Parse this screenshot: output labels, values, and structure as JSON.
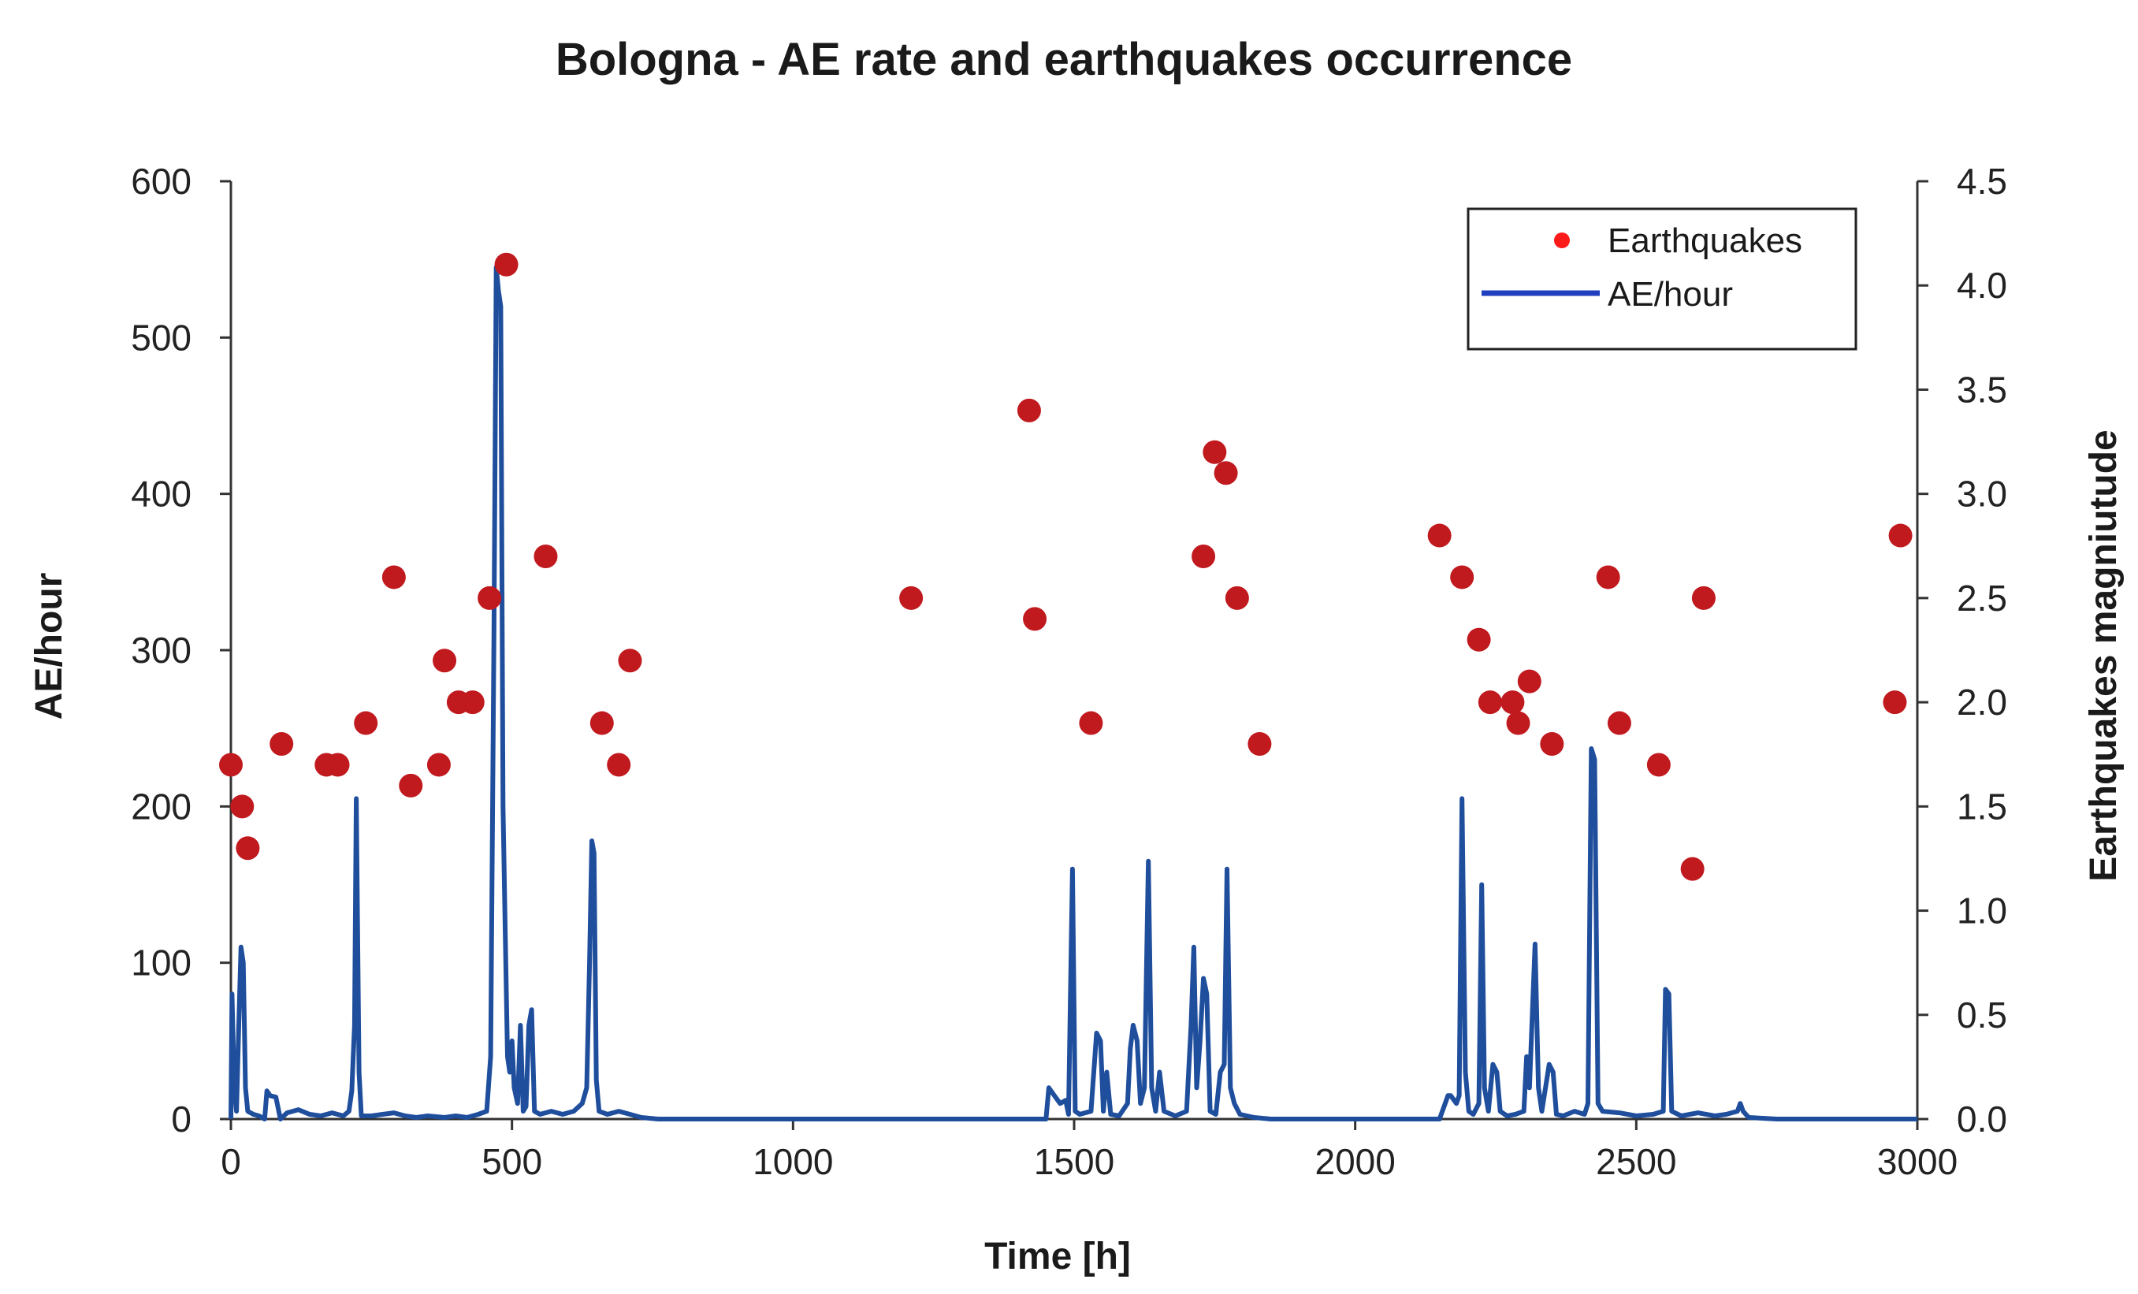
{
  "chart_data": {
    "type": "line+scatter",
    "title": "Bologna - AE rate and earthquakes occurrence",
    "xlabel": "Time [h]",
    "ylabel_left": "AE/hour",
    "ylabel_right": "Earthquakes magniutude",
    "xlim": [
      0,
      3000
    ],
    "ylim_left": [
      0,
      600
    ],
    "ylim_right": [
      0,
      4.5
    ],
    "x_ticks": [
      0,
      500,
      1000,
      1500,
      2000,
      2500,
      3000
    ],
    "y_left_ticks": [
      0,
      100,
      200,
      300,
      400,
      500,
      600
    ],
    "y_right_ticks": [
      "0.0",
      "0.5",
      "1.0",
      "1.5",
      "2.0",
      "2.5",
      "3.0",
      "3.5",
      "4.0",
      "4.5"
    ],
    "legend_position": "top-right",
    "series": [
      {
        "name": "Earthquakes",
        "type": "scatter",
        "axis": "right",
        "color": "#c0191e",
        "legend_color": "#ff1a1a",
        "points": [
          [
            0,
            1.7
          ],
          [
            20,
            1.5
          ],
          [
            30,
            1.3
          ],
          [
            90,
            1.8
          ],
          [
            170,
            1.7
          ],
          [
            190,
            1.7
          ],
          [
            240,
            1.9
          ],
          [
            290,
            2.6
          ],
          [
            320,
            1.6
          ],
          [
            370,
            1.7
          ],
          [
            380,
            2.2
          ],
          [
            405,
            2.0
          ],
          [
            430,
            2.0
          ],
          [
            460,
            2.5
          ],
          [
            490,
            4.1
          ],
          [
            560,
            2.7
          ],
          [
            660,
            1.9
          ],
          [
            690,
            1.7
          ],
          [
            710,
            2.2
          ],
          [
            1210,
            2.5
          ],
          [
            1420,
            3.4
          ],
          [
            1430,
            2.4
          ],
          [
            1530,
            1.9
          ],
          [
            1730,
            2.7
          ],
          [
            1750,
            3.2
          ],
          [
            1770,
            3.1
          ],
          [
            1790,
            2.5
          ],
          [
            1830,
            1.8
          ],
          [
            2150,
            2.8
          ],
          [
            2190,
            2.6
          ],
          [
            2220,
            2.3
          ],
          [
            2240,
            2.0
          ],
          [
            2280,
            2.0
          ],
          [
            2290,
            1.9
          ],
          [
            2310,
            2.1
          ],
          [
            2350,
            1.8
          ],
          [
            2450,
            2.6
          ],
          [
            2470,
            1.9
          ],
          [
            2540,
            1.7
          ],
          [
            2600,
            1.2
          ],
          [
            2620,
            2.5
          ],
          [
            2960,
            2.0
          ],
          [
            2970,
            2.8
          ]
        ]
      },
      {
        "name": "AE/hour",
        "type": "line",
        "axis": "left",
        "color": "#1f4e9c",
        "legend_color": "#1f3fbf",
        "points": [
          [
            0,
            0
          ],
          [
            2,
            80
          ],
          [
            6,
            20
          ],
          [
            10,
            5
          ],
          [
            14,
            60
          ],
          [
            18,
            110
          ],
          [
            22,
            100
          ],
          [
            26,
            20
          ],
          [
            30,
            5
          ],
          [
            40,
            3
          ],
          [
            50,
            2
          ],
          [
            60,
            0
          ],
          [
            64,
            18
          ],
          [
            70,
            15
          ],
          [
            80,
            14
          ],
          [
            88,
            0
          ],
          [
            100,
            4
          ],
          [
            120,
            6
          ],
          [
            140,
            3
          ],
          [
            160,
            2
          ],
          [
            180,
            4
          ],
          [
            200,
            2
          ],
          [
            210,
            5
          ],
          [
            215,
            18
          ],
          [
            220,
            60
          ],
          [
            223,
            205
          ],
          [
            228,
            30
          ],
          [
            232,
            2
          ],
          [
            250,
            2
          ],
          [
            270,
            3
          ],
          [
            290,
            4
          ],
          [
            310,
            2
          ],
          [
            330,
            1
          ],
          [
            350,
            2
          ],
          [
            380,
            1
          ],
          [
            400,
            2
          ],
          [
            420,
            1
          ],
          [
            440,
            3
          ],
          [
            455,
            5
          ],
          [
            462,
            40
          ],
          [
            468,
            310
          ],
          [
            472,
            545
          ],
          [
            476,
            530
          ],
          [
            480,
            520
          ],
          [
            484,
            200
          ],
          [
            488,
            120
          ],
          [
            492,
            40
          ],
          [
            496,
            30
          ],
          [
            500,
            50
          ],
          [
            504,
            20
          ],
          [
            510,
            10
          ],
          [
            515,
            60
          ],
          [
            520,
            5
          ],
          [
            525,
            8
          ],
          [
            530,
            60
          ],
          [
            535,
            70
          ],
          [
            540,
            5
          ],
          [
            550,
            3
          ],
          [
            570,
            5
          ],
          [
            590,
            3
          ],
          [
            610,
            5
          ],
          [
            625,
            10
          ],
          [
            633,
            20
          ],
          [
            638,
            100
          ],
          [
            642,
            178
          ],
          [
            646,
            170
          ],
          [
            650,
            25
          ],
          [
            655,
            5
          ],
          [
            670,
            3
          ],
          [
            690,
            5
          ],
          [
            710,
            3
          ],
          [
            730,
            1
          ],
          [
            760,
            0
          ],
          [
            1000,
            0
          ],
          [
            1200,
            0
          ],
          [
            1400,
            0
          ],
          [
            1450,
            0
          ],
          [
            1455,
            20
          ],
          [
            1465,
            15
          ],
          [
            1475,
            10
          ],
          [
            1485,
            12
          ],
          [
            1490,
            3
          ],
          [
            1497,
            160
          ],
          [
            1502,
            5
          ],
          [
            1510,
            3
          ],
          [
            1530,
            5
          ],
          [
            1540,
            55
          ],
          [
            1547,
            50
          ],
          [
            1552,
            5
          ],
          [
            1558,
            30
          ],
          [
            1565,
            3
          ],
          [
            1580,
            2
          ],
          [
            1595,
            10
          ],
          [
            1600,
            45
          ],
          [
            1605,
            60
          ],
          [
            1612,
            50
          ],
          [
            1618,
            10
          ],
          [
            1625,
            20
          ],
          [
            1632,
            165
          ],
          [
            1638,
            20
          ],
          [
            1645,
            5
          ],
          [
            1652,
            30
          ],
          [
            1660,
            5
          ],
          [
            1680,
            2
          ],
          [
            1700,
            5
          ],
          [
            1708,
            60
          ],
          [
            1713,
            110
          ],
          [
            1718,
            20
          ],
          [
            1724,
            50
          ],
          [
            1730,
            90
          ],
          [
            1736,
            80
          ],
          [
            1742,
            5
          ],
          [
            1752,
            3
          ],
          [
            1760,
            30
          ],
          [
            1767,
            35
          ],
          [
            1772,
            160
          ],
          [
            1778,
            20
          ],
          [
            1785,
            10
          ],
          [
            1795,
            3
          ],
          [
            1820,
            1
          ],
          [
            1850,
            0
          ],
          [
            2000,
            0
          ],
          [
            2150,
            0
          ],
          [
            2165,
            15
          ],
          [
            2170,
            15
          ],
          [
            2180,
            10
          ],
          [
            2185,
            15
          ],
          [
            2190,
            205
          ],
          [
            2196,
            30
          ],
          [
            2202,
            5
          ],
          [
            2210,
            3
          ],
          [
            2220,
            10
          ],
          [
            2225,
            150
          ],
          [
            2230,
            20
          ],
          [
            2237,
            5
          ],
          [
            2245,
            35
          ],
          [
            2252,
            30
          ],
          [
            2258,
            5
          ],
          [
            2270,
            2
          ],
          [
            2285,
            3
          ],
          [
            2300,
            5
          ],
          [
            2305,
            40
          ],
          [
            2310,
            20
          ],
          [
            2320,
            112
          ],
          [
            2326,
            20
          ],
          [
            2332,
            5
          ],
          [
            2345,
            35
          ],
          [
            2352,
            30
          ],
          [
            2358,
            3
          ],
          [
            2370,
            2
          ],
          [
            2390,
            5
          ],
          [
            2408,
            3
          ],
          [
            2414,
            10
          ],
          [
            2420,
            237
          ],
          [
            2426,
            230
          ],
          [
            2432,
            10
          ],
          [
            2440,
            5
          ],
          [
            2470,
            4
          ],
          [
            2500,
            2
          ],
          [
            2530,
            3
          ],
          [
            2548,
            5
          ],
          [
            2552,
            83
          ],
          [
            2558,
            80
          ],
          [
            2563,
            5
          ],
          [
            2580,
            2
          ],
          [
            2610,
            4
          ],
          [
            2640,
            2
          ],
          [
            2660,
            3
          ],
          [
            2680,
            5
          ],
          [
            2685,
            10
          ],
          [
            2690,
            5
          ],
          [
            2700,
            1
          ],
          [
            2750,
            0
          ],
          [
            3000,
            0
          ]
        ]
      }
    ]
  }
}
